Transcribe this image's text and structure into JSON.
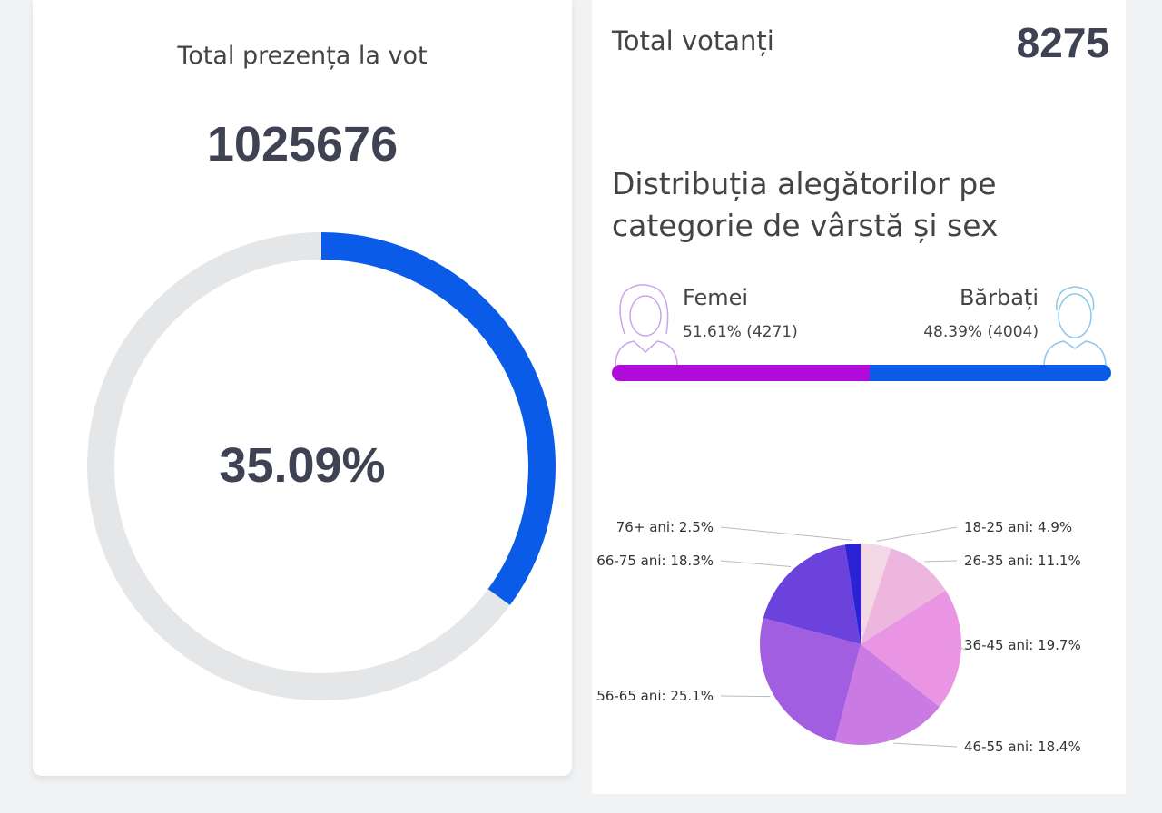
{
  "turnout": {
    "title": "Total prezența la vot",
    "total": "1025676",
    "percent_label": "35.09%",
    "percent_value": 35.09,
    "colors": {
      "fill": "#0a5ce8",
      "track": "#e5e6e8"
    }
  },
  "voters": {
    "title": "Total votanți",
    "total": "8275"
  },
  "distribution": {
    "heading": "Distribuția alegătorilor pe categorie de vârstă și sex",
    "female": {
      "label": "Femei",
      "value": "51.61% (4271)",
      "percent": 51.61,
      "color": "#b10bd9",
      "icon": "woman-avatar-icon"
    },
    "male": {
      "label": "Bărbați",
      "value": "48.39% (4004)",
      "percent": 48.39,
      "color": "#0a5ce8",
      "icon": "man-avatar-icon"
    }
  },
  "chart_data": {
    "type": "pie",
    "title": "Distribuția alegătorilor pe categorie de vârstă",
    "categories": [
      "18-25 ani",
      "26-35 ani",
      "36-45 ani",
      "46-55 ani",
      "56-65 ani",
      "66-75 ani",
      "76+ ani"
    ],
    "values": [
      4.9,
      11.1,
      19.7,
      18.4,
      25.1,
      18.3,
      2.5
    ],
    "labels": [
      "18-25 ani: 4.9%",
      "26-35 ani: 11.1%",
      "36-45 ani: 19.7%",
      "46-55 ani: 18.4%",
      "56-65 ani: 25.1%",
      "66-75 ani: 18.3%",
      "76+ ani: 2.5%"
    ],
    "colors": [
      "#f3d7e4",
      "#ecb6df",
      "#e995e3",
      "#c97ae3",
      "#a15ee0",
      "#6b43dc",
      "#2b22d6"
    ]
  }
}
